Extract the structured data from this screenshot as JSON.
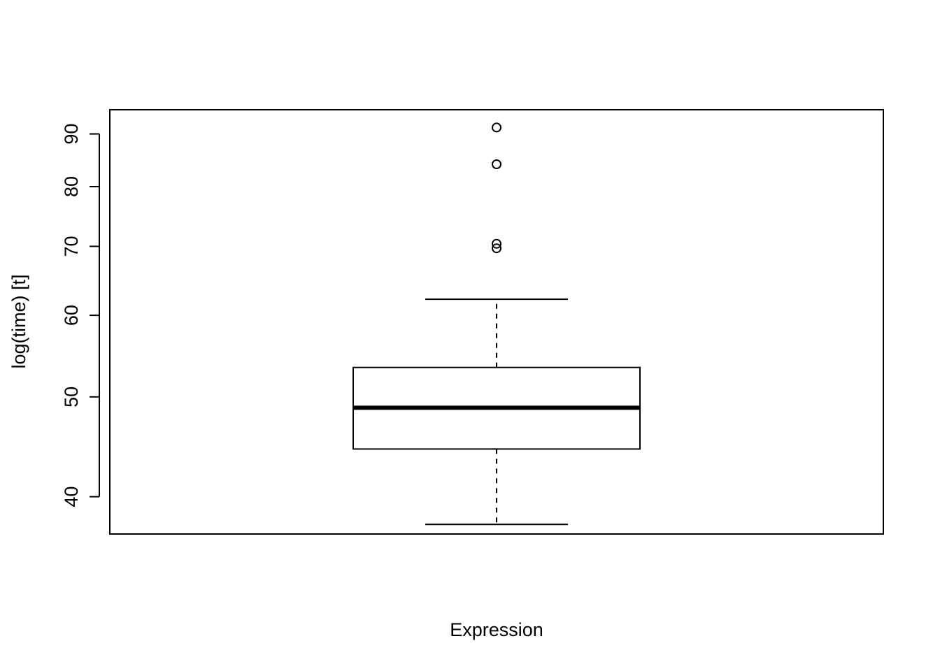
{
  "chart_data": {
    "type": "box",
    "title": "",
    "xlabel": "Expression",
    "ylabel": "log(time) [t]",
    "y_scale": "log",
    "ylim": [
      36.8,
      95.0
    ],
    "yticks": [
      40,
      50,
      60,
      70,
      80,
      90
    ],
    "grid": false,
    "legend": null,
    "boxes": [
      {
        "name": "",
        "whisker_low": 37.6,
        "q1": 44.5,
        "median": 48.8,
        "q3": 53.4,
        "whisker_high": 62.2,
        "outliers": [
          69.7,
          70.4,
          84.1,
          91.3
        ]
      }
    ]
  }
}
